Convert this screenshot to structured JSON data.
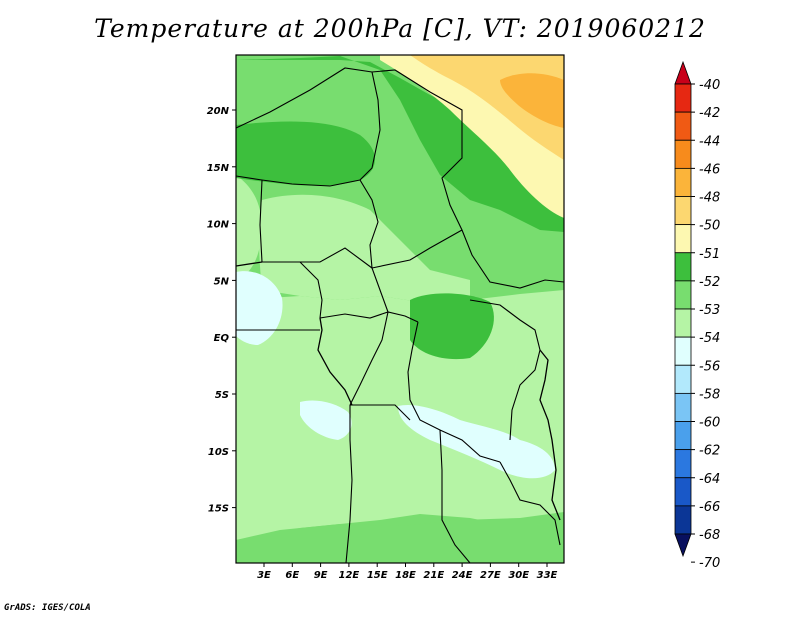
{
  "title": "Temperature at 200hPa [C], VT: 2019060212",
  "credit": "GrADS: IGES/COLA",
  "map": {
    "lat_ticks": [
      "20N",
      "15N",
      "10N",
      "5N",
      "EQ",
      "5S",
      "10S",
      "15S"
    ],
    "lon_ticks": [
      "3E",
      "6E",
      "9E",
      "12E",
      "15E",
      "18E",
      "21E",
      "24E",
      "27E",
      "30E",
      "33E"
    ]
  },
  "colorbar": {
    "labels": [
      "-40",
      "-42",
      "-44",
      "-46",
      "-48",
      "-50",
      "-51",
      "-52",
      "-53",
      "-54",
      "-56",
      "-58",
      "-60",
      "-62",
      "-64",
      "-66",
      "-68",
      "-70"
    ],
    "colors": [
      "#c8001a",
      "#e62812",
      "#f05a14",
      "#f78b1c",
      "#fbb43a",
      "#fcd770",
      "#fdf8b1",
      "#3dbf3d",
      "#78dd6f",
      "#b5f4a5",
      "#e0fffe",
      "#b2e9fc",
      "#7ac5f5",
      "#4aa0ec",
      "#2b78e0",
      "#1958c8",
      "#0b3696",
      "#08105e"
    ]
  }
}
